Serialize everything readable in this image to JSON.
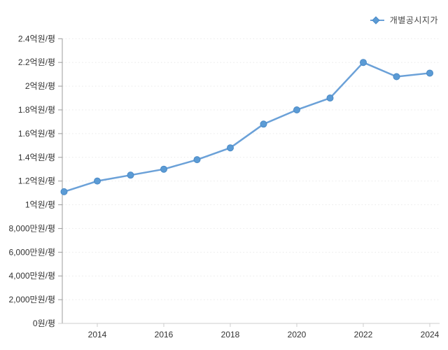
{
  "legend": {
    "label": "개별공시지가",
    "marker_icon": "diamond-line-marker"
  },
  "colors": {
    "line": "#6ba1d8",
    "marker_fill": "#5b9bd5",
    "marker_stroke": "#4a8ac6",
    "grid": "#e9e9e9",
    "y_axis": "#9b9b9b",
    "x_axis": "#cccccc",
    "tick": "#9b9b9b",
    "tick_label": "#333333",
    "legend_text": "#444444",
    "background": "#ffffff"
  },
  "chart_data": {
    "type": "line",
    "title": "",
    "xlabel": "",
    "ylabel": "",
    "unit": "원/평",
    "x": [
      2013,
      2014,
      2015,
      2016,
      2017,
      2018,
      2019,
      2020,
      2021,
      2022,
      2023,
      2024
    ],
    "series": [
      {
        "name": "개별공시지가",
        "values": [
          1.11,
          1.2,
          1.25,
          1.3,
          1.38,
          1.48,
          1.68,
          1.8,
          1.9,
          2.2,
          2.08,
          2.11
        ]
      }
    ],
    "value_unit_note": "values in 억원/평",
    "ylim": [
      0,
      2.4
    ],
    "xlim": [
      2013,
      2024
    ],
    "y_ticks": [
      {
        "value": 0.0,
        "label": "0원/평"
      },
      {
        "value": 0.2,
        "label": "2,000만원/평"
      },
      {
        "value": 0.4,
        "label": "4,000만원/평"
      },
      {
        "value": 0.6,
        "label": "6,000만원/평"
      },
      {
        "value": 0.8,
        "label": "8,000만원/평"
      },
      {
        "value": 1.0,
        "label": "1억원/평"
      },
      {
        "value": 1.2,
        "label": "1.2억원/평"
      },
      {
        "value": 1.4,
        "label": "1.4억원/평"
      },
      {
        "value": 1.6,
        "label": "1.6억원/평"
      },
      {
        "value": 1.8,
        "label": "1.8억원/평"
      },
      {
        "value": 2.0,
        "label": "2억원/평"
      },
      {
        "value": 2.2,
        "label": "2.2억원/평"
      },
      {
        "value": 2.4,
        "label": "2.4억원/평"
      }
    ],
    "x_ticks": [
      {
        "value": 2014,
        "label": "2014"
      },
      {
        "value": 2016,
        "label": "2016"
      },
      {
        "value": 2018,
        "label": "2018"
      },
      {
        "value": 2020,
        "label": "2020"
      },
      {
        "value": 2022,
        "label": "2022"
      },
      {
        "value": 2024,
        "label": "2024"
      }
    ],
    "grid": "horizontal-dotted",
    "legend_position": "top-right"
  }
}
